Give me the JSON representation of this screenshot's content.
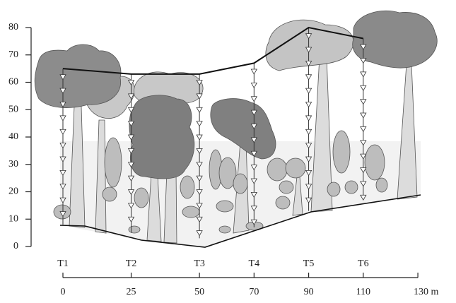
{
  "y_axis": {
    "ticks": [
      0,
      10,
      20,
      30,
      40,
      50,
      60,
      70,
      80
    ]
  },
  "x_axis": {
    "ticks": [
      0,
      25,
      50,
      70,
      90,
      110,
      {
        "value": 130,
        "label": "130 m"
      }
    ]
  },
  "towers": [
    {
      "label": "T1",
      "x": 0,
      "top": 65,
      "base": 8
    },
    {
      "label": "T2",
      "x": 25,
      "top": 63,
      "base": 5
    },
    {
      "label": "T3",
      "x": 50,
      "top": 63,
      "base": 3
    },
    {
      "label": "T4",
      "x": 70,
      "top": 67,
      "base": 7
    },
    {
      "label": "T5",
      "x": 90,
      "top": 80,
      "base": 13
    },
    {
      "label": "T6",
      "x": 110,
      "top": 76,
      "base": 17
    }
  ]
}
